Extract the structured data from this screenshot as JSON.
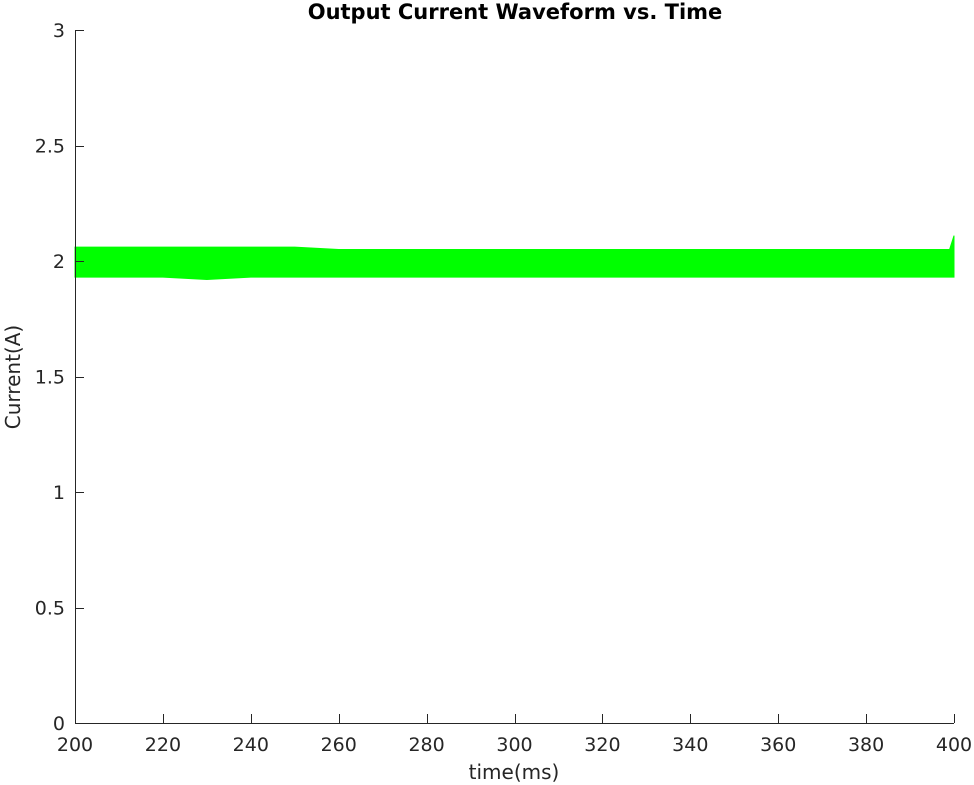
{
  "chart_data": {
    "type": "line",
    "title": "Output Current Waveform vs. Time",
    "xlabel": "time(ms)",
    "ylabel": "Current(A)",
    "xlim": [
      200,
      400
    ],
    "ylim": [
      0,
      3
    ],
    "xticks": [
      "200",
      "220",
      "240",
      "260",
      "280",
      "300",
      "320",
      "340",
      "360",
      "380",
      "400"
    ],
    "yticks": [
      "0",
      "0.5",
      "1",
      "1.5",
      "2",
      "2.5",
      "3"
    ],
    "grid": false,
    "legend": "none",
    "series": [
      {
        "color": "#00ff00",
        "mean": 1.99,
        "ripple_min": 1.93,
        "ripple_max": 2.06,
        "x": [
          200,
          210,
          220,
          230,
          240,
          250,
          260,
          270,
          280,
          290,
          300,
          310,
          320,
          330,
          340,
          350,
          360,
          370,
          380,
          390,
          399,
          400
        ],
        "upper": [
          2.06,
          2.06,
          2.06,
          2.06,
          2.06,
          2.06,
          2.05,
          2.05,
          2.05,
          2.05,
          2.05,
          2.05,
          2.05,
          2.05,
          2.05,
          2.05,
          2.05,
          2.05,
          2.05,
          2.05,
          2.05,
          2.11
        ],
        "lower": [
          1.93,
          1.93,
          1.93,
          1.92,
          1.93,
          1.93,
          1.93,
          1.93,
          1.93,
          1.93,
          1.93,
          1.93,
          1.93,
          1.93,
          1.93,
          1.93,
          1.93,
          1.93,
          1.93,
          1.93,
          1.93,
          1.93
        ]
      }
    ]
  }
}
